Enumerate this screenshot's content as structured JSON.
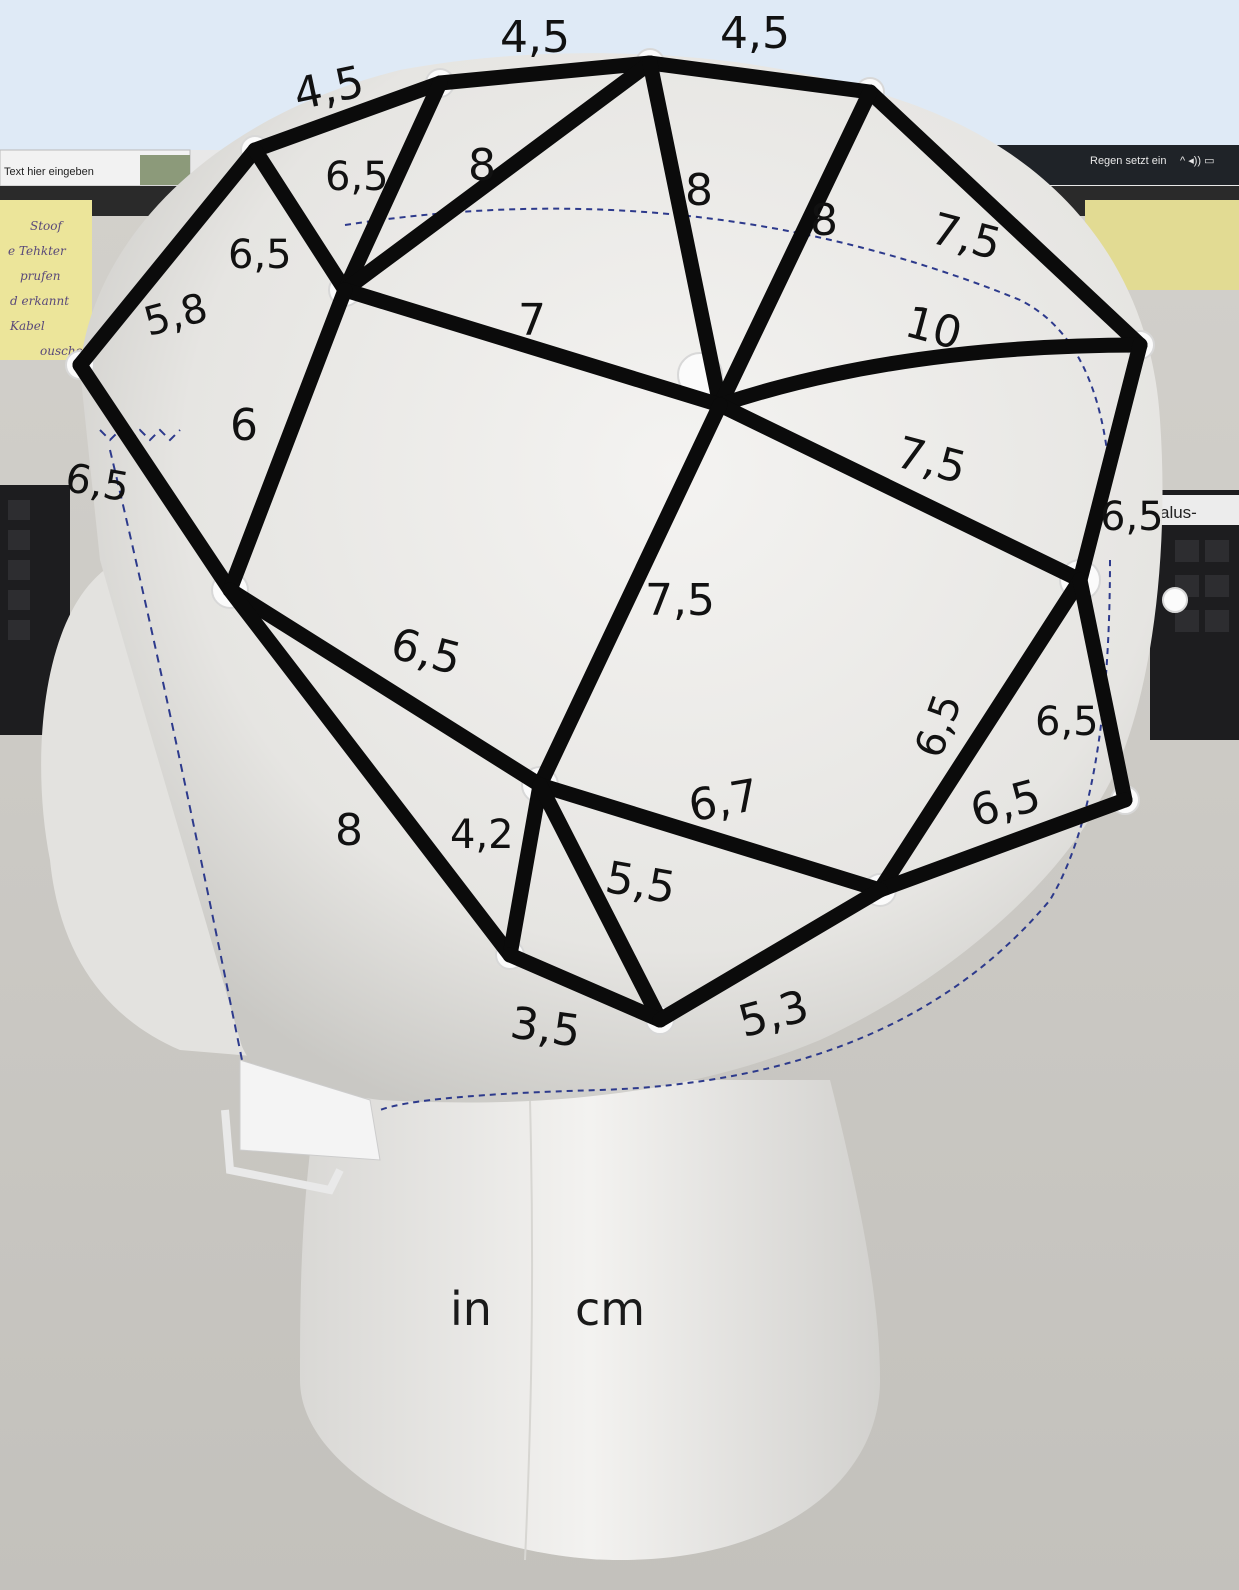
{
  "taskbar": {
    "search_placeholder": "Text hier eingeben",
    "weather": "Regen setzt ein"
  },
  "keyboard_label": "alus-",
  "unit_note": [
    "in",
    "cm"
  ],
  "measurements": {
    "top_left": "4,5",
    "top_mid": "4,5",
    "top_right": "4,5",
    "tri_upper_left": "6,5",
    "tri_upper_mid": "8",
    "upper_mid_8a": "8",
    "upper_mid_8b": "8",
    "upper_right": "7,5",
    "left_upper": "6,5",
    "left_5_8": "5,8",
    "center_7": "7",
    "right_10": "10",
    "left_6": "6",
    "far_left": "6,5",
    "right_mid": "7,5",
    "right_edge": "6,5",
    "center_7_5": "7,5",
    "center_left": "6,5",
    "right_lower_a": "6,5",
    "right_lower_b": "6,5",
    "right_lower_c": "6,5",
    "lower_center": "6,7",
    "lower_left_8": "8",
    "lower_4_2": "4,2",
    "lower_5_5": "5,5",
    "bottom_3_5": "3,5",
    "bottom_5_3": "5,3"
  }
}
